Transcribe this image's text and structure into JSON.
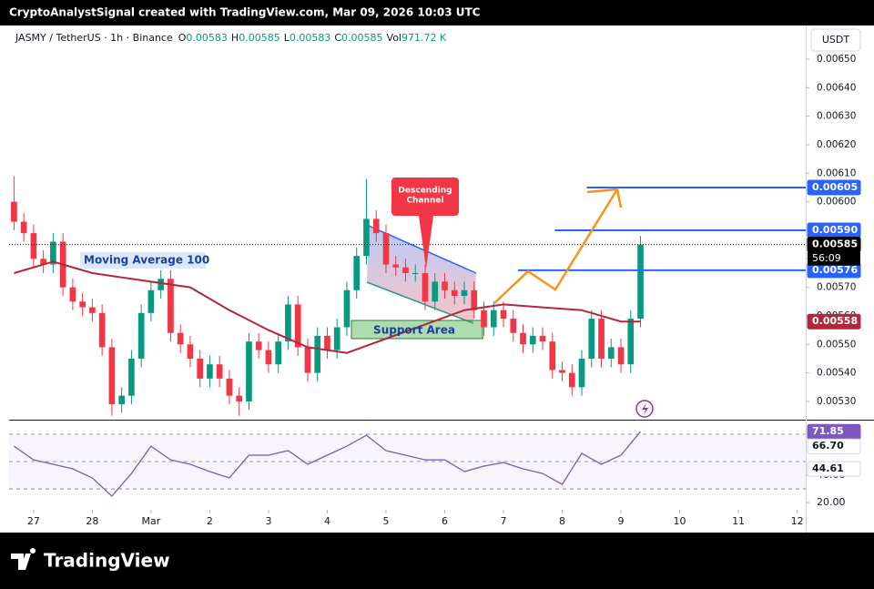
{
  "header": {
    "author_line": "CryptoAnalystSignal created with TradingView.com, Mar 09, 2026 10:03 UTC"
  },
  "legend": {
    "symbol": "JASMY / TetherUS · 1h · Binance",
    "ohlc": [
      {
        "key": "O",
        "value": "0.00583"
      },
      {
        "key": "H",
        "value": "0.00585"
      },
      {
        "key": "L",
        "value": "0.00583"
      },
      {
        "key": "C",
        "value": "0.00585"
      }
    ],
    "vol_key": "Vol",
    "vol": "971.72 K"
  },
  "currency_button": "USDT",
  "countdown": "56:09",
  "annotations": {
    "descending_channel": [
      "Descending",
      "Channel"
    ],
    "support_area": "Support Area",
    "moving_average": "Moving Average 100"
  },
  "footer": {
    "logo_text": "TradingView"
  },
  "chart_data": [
    {
      "type": "candlestick",
      "x": [
        -8,
        -4,
        0,
        4,
        8,
        12,
        16,
        20,
        24,
        28,
        32,
        36,
        40,
        44,
        48,
        52,
        56,
        60,
        64,
        68,
        72,
        76,
        80,
        84,
        88,
        92,
        96,
        100,
        104,
        108,
        112,
        116,
        120,
        124,
        128,
        132,
        136,
        140,
        144,
        148,
        152,
        156,
        160,
        164,
        168,
        172,
        176,
        180,
        184,
        188,
        192,
        196,
        200,
        204,
        208,
        212,
        216,
        220,
        224,
        228,
        232,
        236,
        240,
        244,
        248
      ],
      "open": [
        0.006,
        0.00593,
        0.00589,
        0.0058,
        0.00578,
        0.00586,
        0.0057,
        0.00565,
        0.00563,
        0.00561,
        0.00549,
        0.00529,
        0.00532,
        0.00545,
        0.00561,
        0.00569,
        0.00573,
        0.00554,
        0.0055,
        0.00545,
        0.00538,
        0.00543,
        0.00538,
        0.00532,
        0.0053,
        0.00551,
        0.00548,
        0.00543,
        0.00551,
        0.00564,
        0.00549,
        0.0054,
        0.00553,
        0.00548,
        0.00556,
        0.00569,
        0.00581,
        0.00594,
        0.00589,
        0.00578,
        0.00577,
        0.00575,
        0.00575,
        0.00565,
        0.00572,
        0.00569,
        0.00567,
        0.00569,
        0.00562,
        0.00556,
        0.00562,
        0.00559,
        0.00554,
        0.0055,
        0.00553,
        0.00551,
        0.00541,
        0.0054,
        0.00535,
        0.00545,
        0.00559,
        0.00545,
        0.00549,
        0.00543,
        0.00559
      ],
      "high": [
        0.00609,
        0.00596,
        0.00592,
        0.00583,
        0.00589,
        0.00589,
        0.00573,
        0.00568,
        0.00566,
        0.00564,
        0.00552,
        0.00535,
        0.00548,
        0.00564,
        0.00572,
        0.00576,
        0.00576,
        0.00557,
        0.00553,
        0.00548,
        0.00546,
        0.00546,
        0.00541,
        0.00535,
        0.00554,
        0.00554,
        0.00551,
        0.00554,
        0.00567,
        0.00567,
        0.00552,
        0.00556,
        0.00556,
        0.00559,
        0.00572,
        0.00584,
        0.00608,
        0.00597,
        0.00592,
        0.00581,
        0.0058,
        0.00578,
        0.00578,
        0.00575,
        0.00575,
        0.00572,
        0.00572,
        0.00572,
        0.00565,
        0.00565,
        0.00565,
        0.00562,
        0.00557,
        0.00556,
        0.00556,
        0.00554,
        0.00544,
        0.00543,
        0.00548,
        0.00562,
        0.00562,
        0.00552,
        0.00552,
        0.00562,
        0.00588
      ],
      "low": [
        0.0059,
        0.00586,
        0.00577,
        0.00575,
        0.00575,
        0.00567,
        0.00562,
        0.0056,
        0.00558,
        0.00546,
        0.00525,
        0.00526,
        0.00529,
        0.00542,
        0.00558,
        0.00566,
        0.00551,
        0.00547,
        0.00542,
        0.00535,
        0.00535,
        0.00535,
        0.00529,
        0.00525,
        0.00527,
        0.00545,
        0.0054,
        0.0054,
        0.00548,
        0.00546,
        0.00537,
        0.00537,
        0.00545,
        0.00545,
        0.00553,
        0.00566,
        0.00578,
        0.00586,
        0.00575,
        0.00574,
        0.00572,
        0.00572,
        0.00562,
        0.00562,
        0.00566,
        0.00564,
        0.00564,
        0.00559,
        0.00553,
        0.00553,
        0.00556,
        0.00551,
        0.00547,
        0.00547,
        0.00548,
        0.00538,
        0.00537,
        0.00532,
        0.00532,
        0.00542,
        0.00542,
        0.00542,
        0.0054,
        0.0054,
        0.00556
      ],
      "close": [
        0.00593,
        0.00589,
        0.0058,
        0.00578,
        0.00586,
        0.0057,
        0.00565,
        0.00563,
        0.00561,
        0.00549,
        0.00529,
        0.00532,
        0.00545,
        0.00561,
        0.00569,
        0.00573,
        0.00554,
        0.0055,
        0.00545,
        0.00538,
        0.00543,
        0.00538,
        0.00532,
        0.0053,
        0.00551,
        0.00548,
        0.00543,
        0.00551,
        0.00564,
        0.00549,
        0.0054,
        0.00553,
        0.00548,
        0.00556,
        0.00569,
        0.00581,
        0.00594,
        0.00589,
        0.00578,
        0.00577,
        0.00575,
        0.00575,
        0.00565,
        0.00572,
        0.00569,
        0.00567,
        0.00569,
        0.00562,
        0.00556,
        0.00562,
        0.00559,
        0.00554,
        0.0055,
        0.00553,
        0.00551,
        0.00541,
        0.0054,
        0.00535,
        0.00545,
        0.00559,
        0.00545,
        0.00549,
        0.00543,
        0.00559,
        0.00585
      ],
      "up_color": "#089981",
      "down_color": "#f23645",
      "overlays": [
        {
          "type": "line",
          "color": "#b2283a",
          "x": [
            -8,
            8,
            24,
            48,
            64,
            80,
            96,
            112,
            128,
            144,
            160,
            176,
            192,
            208,
            224,
            240,
            248
          ],
          "values": [
            0.00575,
            0.00579,
            0.00575,
            0.00572,
            0.0057,
            0.00562,
            0.00555,
            0.00549,
            0.00547,
            0.00552,
            0.00557,
            0.00562,
            0.00564,
            0.00563,
            0.00562,
            0.00558,
            0.00558
          ]
        }
      ],
      "levels": [
        {
          "value": 0.00605,
          "label": "0.00605",
          "x_start": 226,
          "color": "#2962ff"
        },
        {
          "value": 0.0059,
          "label": "0.00590",
          "x_start": 213,
          "color": "#2962ff"
        },
        {
          "value": 0.00576,
          "label": "0.00576",
          "x_start": 198,
          "color": "#2962ff"
        }
      ],
      "last_price": {
        "value": 0.00585,
        "label": "0.00585",
        "color": "#000000"
      },
      "ma_badge": {
        "value": 0.00558,
        "label": "0.00558",
        "color": "#b2283a"
      },
      "xlim": [
        -10,
        315.5
      ],
      "xticks": [
        {
          "value": 0,
          "label": "27"
        },
        {
          "value": 24,
          "label": "28"
        },
        {
          "value": 48,
          "label": "Mar"
        },
        {
          "value": 72,
          "label": "2"
        },
        {
          "value": 96,
          "label": "3"
        },
        {
          "value": 120,
          "label": "4"
        },
        {
          "value": 144,
          "label": "5"
        },
        {
          "value": 168,
          "label": "6"
        },
        {
          "value": 192,
          "label": "7"
        },
        {
          "value": 216,
          "label": "8"
        },
        {
          "value": 240,
          "label": "9"
        },
        {
          "value": 264,
          "label": "10"
        },
        {
          "value": 288,
          "label": "11"
        },
        {
          "value": 312,
          "label": "12"
        }
      ],
      "ylim": [
        0.005236,
        0.006618
      ],
      "yticks": [
        {
          "value": 0.0053,
          "label": "0.00530"
        },
        {
          "value": 0.0054,
          "label": "0.00540"
        },
        {
          "value": 0.0055,
          "label": "0.00550"
        },
        {
          "value": 0.0056,
          "label": "0.00560"
        },
        {
          "value": 0.0057,
          "label": "0.00570"
        },
        {
          "value": 0.0058,
          "label": "0.00580"
        },
        {
          "value": 0.0059,
          "label": "0.00590"
        },
        {
          "value": 0.006,
          "label": "0.00600"
        },
        {
          "value": 0.0061,
          "label": "0.00610"
        },
        {
          "value": 0.0062,
          "label": "0.00620"
        },
        {
          "value": 0.0063,
          "label": "0.00630"
        },
        {
          "value": 0.0064,
          "label": "0.00640"
        },
        {
          "value": 0.0065,
          "label": "0.00650"
        }
      ]
    },
    {
      "type": "line",
      "series": [
        {
          "color": "#7e57c2",
          "x": [
            -8,
            0,
            8,
            16,
            24,
            32,
            40,
            48,
            56,
            64,
            72,
            80,
            88,
            96,
            104,
            112,
            120,
            128,
            136,
            144,
            152,
            160,
            168,
            176,
            184,
            192,
            200,
            208,
            216,
            224,
            232,
            240,
            248
          ],
          "values": [
            61.3,
            51.3,
            48,
            44.7,
            38,
            24.7,
            41.3,
            61.3,
            51.3,
            48,
            42.7,
            38,
            54.7,
            54.7,
            58,
            48,
            54.7,
            61.3,
            69.3,
            58,
            54.7,
            51.3,
            51.3,
            42.7,
            46.7,
            49.3,
            44.7,
            41.3,
            33.3,
            56,
            48,
            54.7,
            71.85
          ]
        }
      ],
      "bands": [
        70,
        50,
        30
      ],
      "badges": [
        {
          "value": 71.85,
          "label": "71.85",
          "color": "#7e57c2"
        },
        {
          "value": 66.7,
          "label": "66.70",
          "color": "#ffffff"
        },
        {
          "value": 44.61,
          "label": "44.61",
          "color": "#ffffff"
        }
      ],
      "ylim": [
        14.7,
        80
      ],
      "yticks": [
        {
          "value": 20,
          "label": "20.00"
        },
        {
          "value": 40,
          "label": "40.00"
        }
      ]
    }
  ]
}
